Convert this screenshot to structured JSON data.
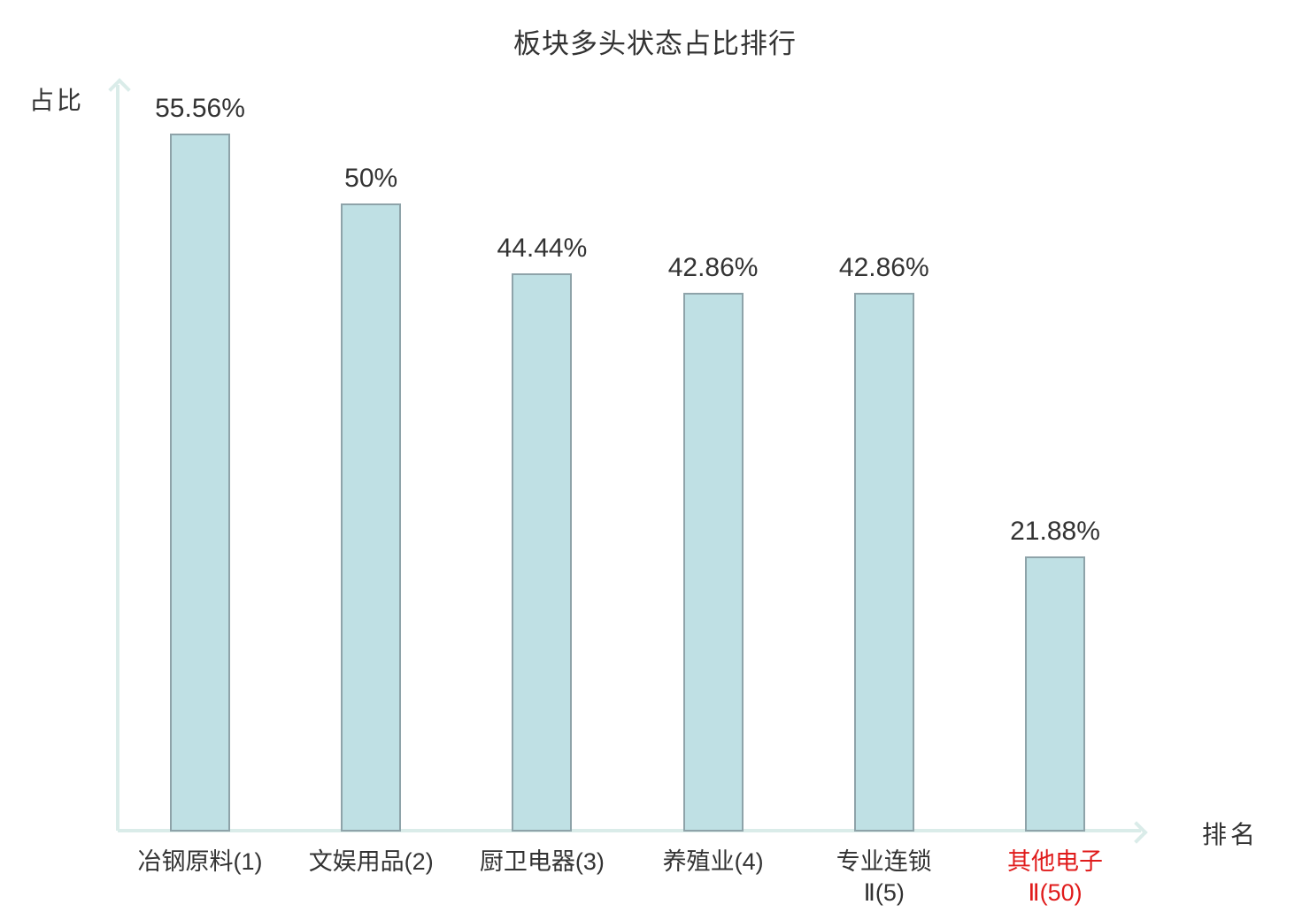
{
  "page": {
    "background": "#ffffff"
  },
  "chart_data": {
    "type": "bar",
    "title": "板块多头状态占比排行",
    "xlabel": "排名",
    "ylabel": "占比",
    "categories": [
      "冶钢原料(1)",
      "文娱用品(2)",
      "厨卫电器(3)",
      "养殖业(4)",
      "专业连锁Ⅱ(5)",
      "其他电子Ⅱ(50)"
    ],
    "values": [
      55.56,
      50,
      44.44,
      42.86,
      42.86,
      21.88
    ],
    "value_labels": [
      "55.56%",
      "50%",
      "44.44%",
      "42.86%",
      "42.86%",
      "21.88%"
    ],
    "category_label_lines": [
      [
        "冶钢原料(1)"
      ],
      [
        "文娱用品(2)"
      ],
      [
        "厨卫电器(3)"
      ],
      [
        "养殖业(4)"
      ],
      [
        "专业连锁",
        "Ⅱ(5)"
      ],
      [
        "其他电子",
        "Ⅱ(50)"
      ]
    ],
    "category_label_colors": [
      "#333333",
      "#333333",
      "#333333",
      "#333333",
      "#333333",
      "#e01b1b"
    ],
    "ylim": [
      0,
      59
    ],
    "grid": false,
    "legend": null,
    "colors": {
      "bar_fill": "#bfe0e4",
      "bar_border": "#8ea3a9",
      "axis": "#daece9",
      "text": "#333333",
      "highlight": "#e01b1b"
    }
  }
}
